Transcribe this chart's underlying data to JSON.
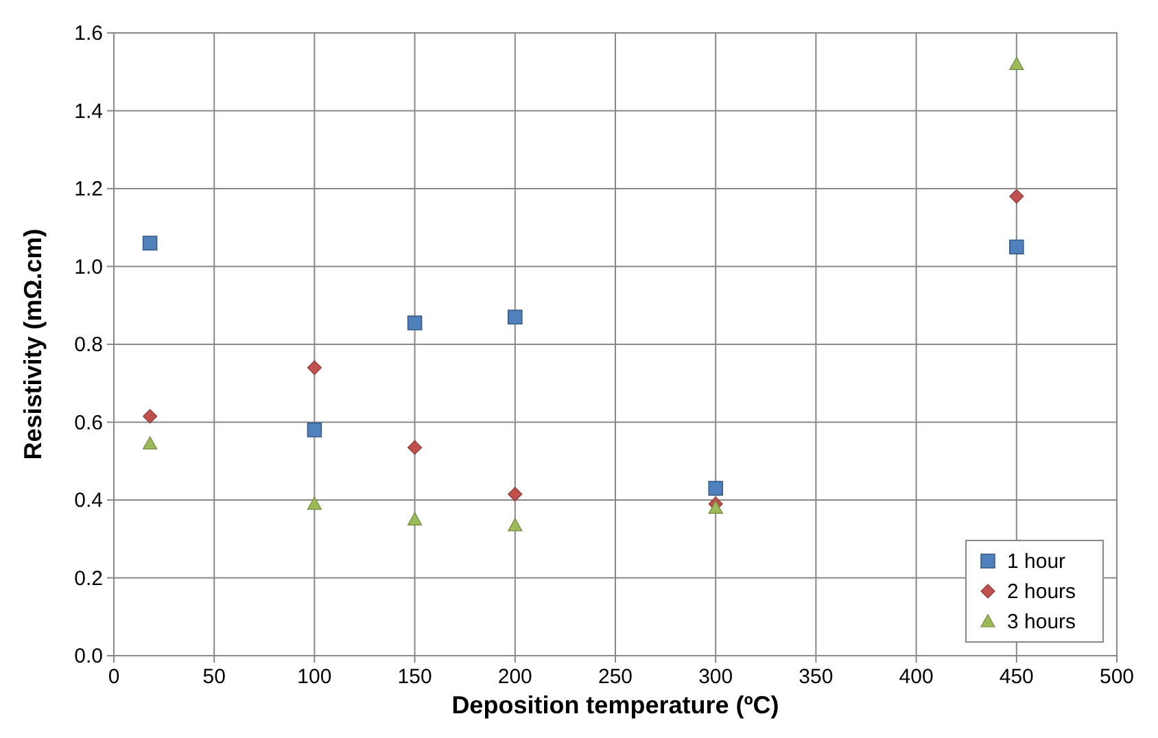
{
  "chart_data": {
    "type": "scatter",
    "xlabel": "Deposition temperature (ºC)",
    "ylabel": "Resistivity (mΩ.cm)",
    "xlim": [
      0,
      500
    ],
    "xticks": [
      0,
      50,
      100,
      150,
      200,
      250,
      300,
      350,
      400,
      450,
      500
    ],
    "ylim": [
      0,
      1.6
    ],
    "yticks": [
      {
        "value": 0,
        "label": "0.0"
      },
      {
        "value": 0.2,
        "label": "0.2"
      },
      {
        "value": 0.4,
        "label": "0.4"
      },
      {
        "value": 0.6,
        "label": "0.6"
      },
      {
        "value": 0.8,
        "label": "0.8"
      },
      {
        "value": 1,
        "label": "1.0"
      },
      {
        "value": 1.2,
        "label": "1.2"
      },
      {
        "value": 1.4,
        "label": "1.4"
      },
      {
        "value": 1.6,
        "label": "1.6"
      }
    ],
    "grid": true,
    "legend": "bottom right",
    "series": [
      {
        "name": "1 hour",
        "color": "#4f81bd",
        "marker": "square",
        "x": [
          18,
          100,
          150,
          200,
          300,
          450
        ],
        "values": [
          1.06,
          0.58,
          0.855,
          0.87,
          0.43,
          1.05
        ]
      },
      {
        "name": "2 hours",
        "color": "#c0504d",
        "marker": "diamond",
        "x": [
          18,
          100,
          150,
          200,
          300,
          450
        ],
        "values": [
          0.615,
          0.74,
          0.535,
          0.415,
          0.39,
          1.18
        ]
      },
      {
        "name": "3 hours",
        "color": "#9bbb59",
        "marker": "triangle",
        "x": [
          18,
          100,
          150,
          200,
          300,
          450
        ],
        "values": [
          0.545,
          0.39,
          0.35,
          0.335,
          0.38,
          1.52
        ]
      }
    ]
  }
}
